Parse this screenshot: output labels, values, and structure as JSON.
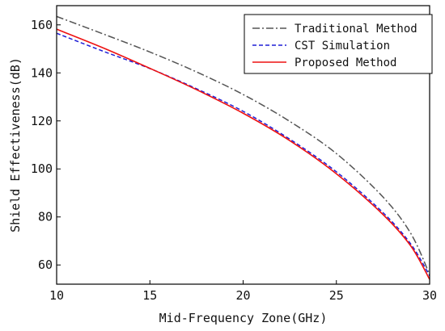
{
  "chart_data": {
    "type": "line",
    "title": "",
    "xlabel": "Mid-Frequency Zone(GHz)",
    "ylabel": "Shield Effectiveness(dB)",
    "xlim": [
      10,
      30
    ],
    "ylim": [
      52,
      168
    ],
    "xticks": [
      10,
      15,
      20,
      25,
      30
    ],
    "yticks": [
      60,
      80,
      100,
      120,
      140,
      160
    ],
    "grid": false,
    "legend_position": "top-right",
    "series": [
      {
        "name": "Traditional Method",
        "color": "#555555",
        "style": "dashdot",
        "points": [
          [
            10,
            163.5
          ],
          [
            12.5,
            156.2
          ],
          [
            15,
            148.7
          ],
          [
            17.5,
            140.4
          ],
          [
            20,
            131.0
          ],
          [
            22.5,
            119.8
          ],
          [
            25,
            106.4
          ],
          [
            27.5,
            88.3
          ],
          [
            29,
            73.0
          ],
          [
            30,
            56.0
          ]
        ]
      },
      {
        "name": "CST Simulation",
        "color": "#1f1fd6",
        "style": "dashed",
        "points": [
          [
            10,
            156.5
          ],
          [
            12.5,
            149.0
          ],
          [
            15,
            141.8
          ],
          [
            17.5,
            133.4
          ],
          [
            20,
            124.0
          ],
          [
            22.5,
            112.4
          ],
          [
            25,
            98.8
          ],
          [
            27.5,
            81.8
          ],
          [
            29,
            68.6
          ],
          [
            30,
            55.5
          ]
        ]
      },
      {
        "name": "Proposed Method",
        "color": "#ee1111",
        "style": "solid",
        "points": [
          [
            10,
            158.2
          ],
          [
            12.5,
            150.4
          ],
          [
            15,
            141.9
          ],
          [
            17.5,
            133.0
          ],
          [
            20,
            123.2
          ],
          [
            22.5,
            111.8
          ],
          [
            25,
            98.0
          ],
          [
            27.5,
            81.0
          ],
          [
            29,
            67.8
          ],
          [
            30,
            54.0
          ]
        ]
      }
    ]
  }
}
